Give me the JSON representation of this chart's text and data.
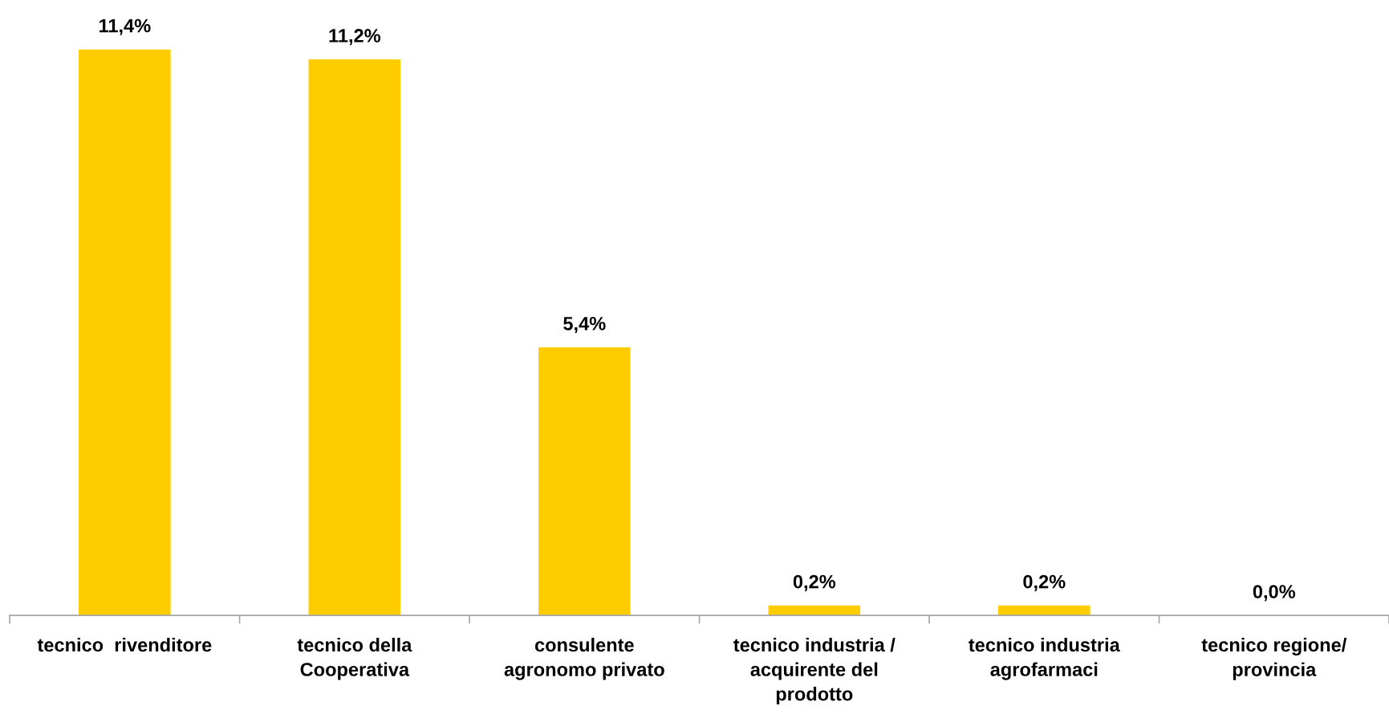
{
  "chart_data": {
    "type": "bar",
    "categories": [
      "tecnico  rivenditore",
      "tecnico della\nCooperativa",
      "consulente\nagronomo privato",
      "tecnico industria /\nacquirente del\nprodotto",
      "tecnico industria\nagrofarmaci",
      "tecnico regione/\nprovincia"
    ],
    "values": [
      11.4,
      11.2,
      5.4,
      0.2,
      0.2,
      0.0
    ],
    "value_labels": [
      "11,4%",
      "11,2%",
      "5,4%",
      "0,2%",
      "0,2%",
      "0,0%"
    ],
    "color": "#ffcc00"
  }
}
